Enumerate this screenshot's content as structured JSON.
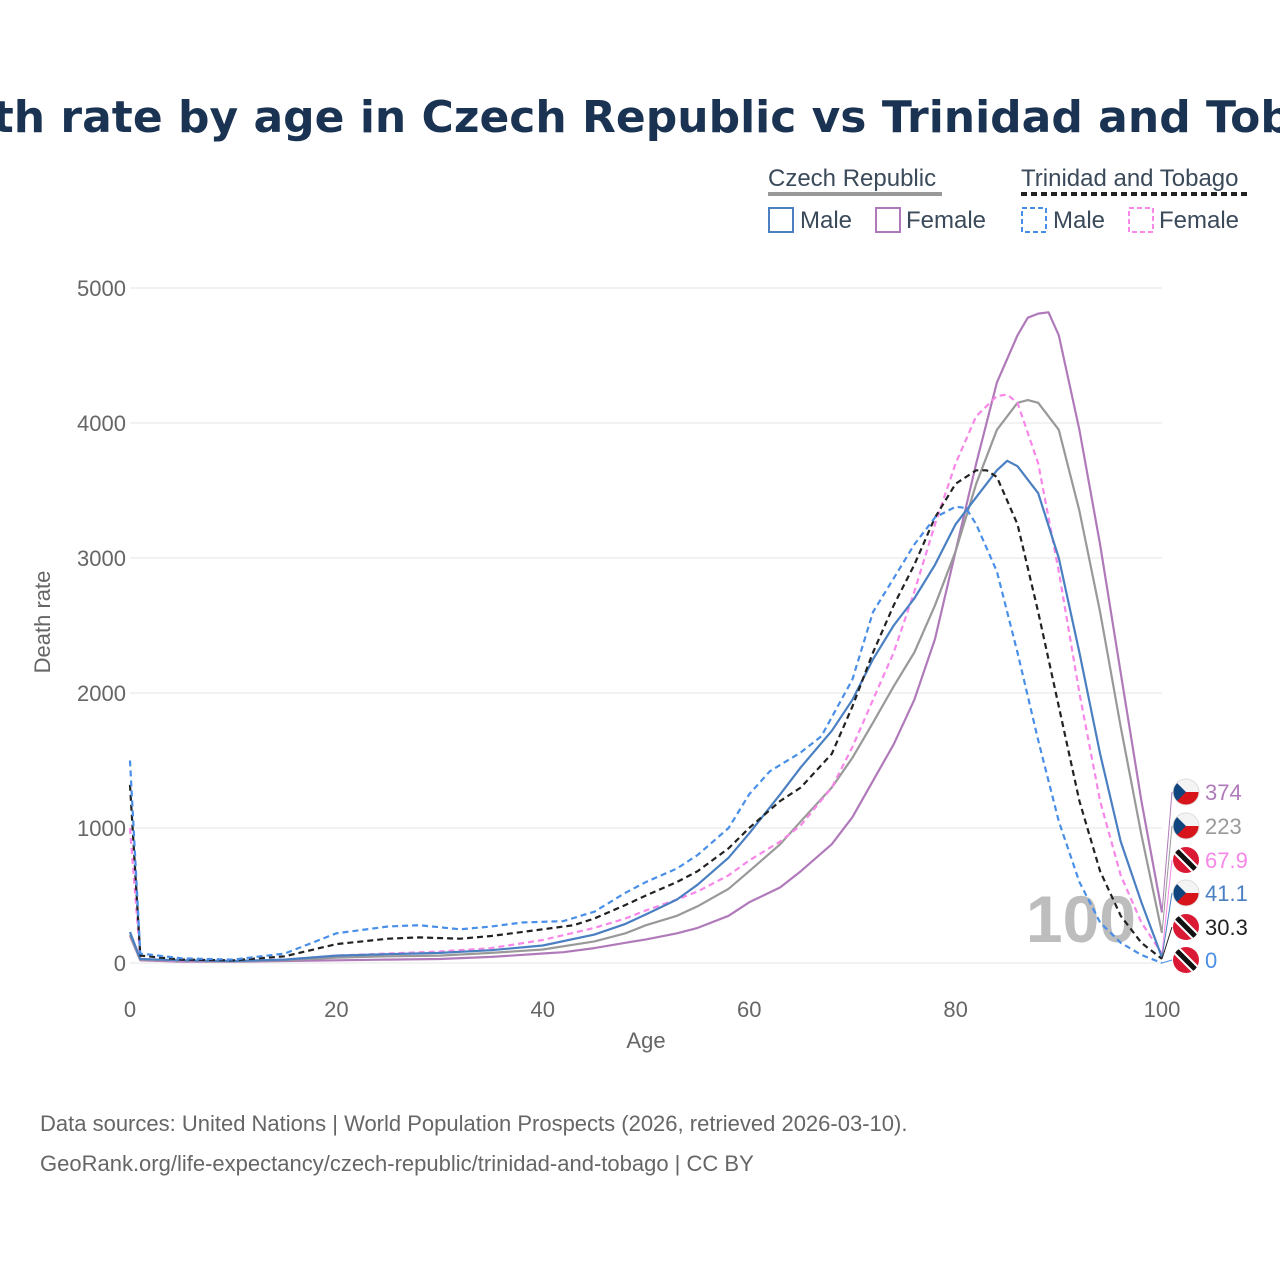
{
  "chart_data": {
    "type": "line",
    "title": "Death rate by age in Czech Republic vs Trinidad and Tobago",
    "xlabel": "Age",
    "ylabel": "Death rate",
    "xlim": [
      0,
      100
    ],
    "ylim": [
      0,
      5000
    ],
    "xticks": [
      "0",
      "20",
      "40",
      "60",
      "80",
      "100"
    ],
    "yticks": [
      "0",
      "1000",
      "2000",
      "3000",
      "4000",
      "5000"
    ],
    "grid": true,
    "legend": {
      "placement": "top-right",
      "groups": [
        {
          "name": "Czech Republic",
          "items": [
            "Male",
            "Female"
          ]
        },
        {
          "name": "Trinidad and Tobago",
          "items": [
            "Male",
            "Female"
          ]
        }
      ]
    },
    "watermark": "100",
    "series": [
      {
        "name": "Czech Republic Female",
        "color": "#b07aba",
        "dash": false,
        "end_label": "374",
        "end_value": 374,
        "flag": "czech-flag",
        "points": [
          [
            0,
            200
          ],
          [
            1,
            20
          ],
          [
            5,
            10
          ],
          [
            10,
            10
          ],
          [
            15,
            15
          ],
          [
            20,
            20
          ],
          [
            25,
            25
          ],
          [
            30,
            30
          ],
          [
            35,
            45
          ],
          [
            40,
            70
          ],
          [
            42,
            80
          ],
          [
            45,
            110
          ],
          [
            48,
            150
          ],
          [
            50,
            175
          ],
          [
            53,
            220
          ],
          [
            55,
            260
          ],
          [
            58,
            350
          ],
          [
            60,
            450
          ],
          [
            63,
            560
          ],
          [
            65,
            680
          ],
          [
            68,
            880
          ],
          [
            70,
            1080
          ],
          [
            72,
            1350
          ],
          [
            74,
            1620
          ],
          [
            76,
            1950
          ],
          [
            78,
            2400
          ],
          [
            80,
            3050
          ],
          [
            82,
            3700
          ],
          [
            84,
            4300
          ],
          [
            86,
            4650
          ],
          [
            87,
            4780
          ],
          [
            88,
            4810
          ],
          [
            89,
            4820
          ],
          [
            90,
            4650
          ],
          [
            92,
            3950
          ],
          [
            94,
            3100
          ],
          [
            96,
            2150
          ],
          [
            98,
            1200
          ],
          [
            100,
            374
          ]
        ]
      },
      {
        "name": "Czech Republic Total",
        "color": "#999999",
        "dash": false,
        "end_label": "223",
        "end_value": 223,
        "flag": "czech-flag",
        "points": [
          [
            0,
            210
          ],
          [
            1,
            25
          ],
          [
            5,
            15
          ],
          [
            10,
            12
          ],
          [
            15,
            20
          ],
          [
            20,
            40
          ],
          [
            25,
            50
          ],
          [
            30,
            55
          ],
          [
            35,
            75
          ],
          [
            40,
            100
          ],
          [
            45,
            160
          ],
          [
            48,
            220
          ],
          [
            50,
            280
          ],
          [
            53,
            350
          ],
          [
            55,
            420
          ],
          [
            58,
            550
          ],
          [
            60,
            680
          ],
          [
            63,
            880
          ],
          [
            65,
            1050
          ],
          [
            68,
            1300
          ],
          [
            70,
            1520
          ],
          [
            72,
            1780
          ],
          [
            74,
            2050
          ],
          [
            76,
            2300
          ],
          [
            78,
            2650
          ],
          [
            80,
            3050
          ],
          [
            82,
            3550
          ],
          [
            84,
            3950
          ],
          [
            86,
            4150
          ],
          [
            87,
            4170
          ],
          [
            88,
            4150
          ],
          [
            90,
            3950
          ],
          [
            92,
            3350
          ],
          [
            94,
            2600
          ],
          [
            96,
            1750
          ],
          [
            98,
            950
          ],
          [
            100,
            223
          ]
        ]
      },
      {
        "name": "Trinidad and Tobago Female",
        "color": "#f787e8",
        "dash": true,
        "end_label": "67.9",
        "end_value": 67.9,
        "flag": "tt-flag",
        "points": [
          [
            0,
            1000
          ],
          [
            1,
            30
          ],
          [
            5,
            15
          ],
          [
            10,
            15
          ],
          [
            15,
            25
          ],
          [
            20,
            55
          ],
          [
            25,
            70
          ],
          [
            30,
            85
          ],
          [
            35,
            110
          ],
          [
            40,
            170
          ],
          [
            45,
            260
          ],
          [
            48,
            330
          ],
          [
            50,
            390
          ],
          [
            53,
            470
          ],
          [
            55,
            530
          ],
          [
            58,
            650
          ],
          [
            60,
            760
          ],
          [
            63,
            900
          ],
          [
            65,
            1020
          ],
          [
            68,
            1300
          ],
          [
            70,
            1600
          ],
          [
            72,
            1950
          ],
          [
            74,
            2300
          ],
          [
            76,
            2750
          ],
          [
            78,
            3250
          ],
          [
            80,
            3700
          ],
          [
            82,
            4050
          ],
          [
            84,
            4200
          ],
          [
            85,
            4210
          ],
          [
            86,
            4150
          ],
          [
            88,
            3700
          ],
          [
            90,
            2900
          ],
          [
            92,
            2000
          ],
          [
            94,
            1200
          ],
          [
            96,
            650
          ],
          [
            98,
            300
          ],
          [
            100,
            67.9
          ]
        ]
      },
      {
        "name": "Czech Republic Male",
        "color": "#4a7fc1",
        "dash": false,
        "end_label": "41.1",
        "end_value": 41.1,
        "flag": "czech-flag",
        "points": [
          [
            0,
            230
          ],
          [
            1,
            30
          ],
          [
            5,
            20
          ],
          [
            10,
            15
          ],
          [
            15,
            25
          ],
          [
            20,
            55
          ],
          [
            25,
            65
          ],
          [
            30,
            75
          ],
          [
            35,
            95
          ],
          [
            40,
            130
          ],
          [
            45,
            210
          ],
          [
            48,
            290
          ],
          [
            50,
            360
          ],
          [
            53,
            470
          ],
          [
            55,
            580
          ],
          [
            58,
            780
          ],
          [
            60,
            960
          ],
          [
            63,
            1250
          ],
          [
            65,
            1450
          ],
          [
            68,
            1720
          ],
          [
            70,
            1950
          ],
          [
            72,
            2250
          ],
          [
            74,
            2500
          ],
          [
            76,
            2700
          ],
          [
            78,
            2950
          ],
          [
            80,
            3250
          ],
          [
            82,
            3450
          ],
          [
            84,
            3650
          ],
          [
            85,
            3720
          ],
          [
            86,
            3680
          ],
          [
            88,
            3480
          ],
          [
            90,
            3000
          ],
          [
            92,
            2300
          ],
          [
            94,
            1550
          ],
          [
            96,
            900
          ],
          [
            98,
            450
          ],
          [
            100,
            41.1
          ]
        ]
      },
      {
        "name": "Trinidad and Tobago Total",
        "color": "#222222",
        "dash": true,
        "end_label": "30.3",
        "end_value": 30.3,
        "flag": "tt-flag",
        "points": [
          [
            0,
            1320
          ],
          [
            1,
            55
          ],
          [
            5,
            25
          ],
          [
            10,
            20
          ],
          [
            15,
            50
          ],
          [
            20,
            140
          ],
          [
            25,
            180
          ],
          [
            28,
            190
          ],
          [
            32,
            180
          ],
          [
            35,
            200
          ],
          [
            40,
            250
          ],
          [
            43,
            280
          ],
          [
            45,
            330
          ],
          [
            48,
            430
          ],
          [
            50,
            500
          ],
          [
            53,
            600
          ],
          [
            55,
            680
          ],
          [
            58,
            850
          ],
          [
            60,
            1000
          ],
          [
            63,
            1200
          ],
          [
            65,
            1300
          ],
          [
            68,
            1550
          ],
          [
            70,
            1900
          ],
          [
            72,
            2300
          ],
          [
            74,
            2650
          ],
          [
            76,
            2950
          ],
          [
            78,
            3300
          ],
          [
            80,
            3550
          ],
          [
            82,
            3650
          ],
          [
            83,
            3650
          ],
          [
            84,
            3600
          ],
          [
            86,
            3250
          ],
          [
            88,
            2600
          ],
          [
            90,
            1900
          ],
          [
            92,
            1200
          ],
          [
            94,
            680
          ],
          [
            96,
            350
          ],
          [
            98,
            150
          ],
          [
            100,
            30.3
          ]
        ]
      },
      {
        "name": "Trinidad and Tobago Male",
        "color": "#4a8fe7",
        "dash": true,
        "end_label": "0",
        "end_value": 0,
        "flag": "tt-flag",
        "points": [
          [
            0,
            1500
          ],
          [
            1,
            70
          ],
          [
            5,
            35
          ],
          [
            10,
            25
          ],
          [
            15,
            70
          ],
          [
            20,
            220
          ],
          [
            25,
            270
          ],
          [
            28,
            280
          ],
          [
            32,
            250
          ],
          [
            35,
            270
          ],
          [
            38,
            300
          ],
          [
            42,
            310
          ],
          [
            45,
            380
          ],
          [
            48,
            520
          ],
          [
            50,
            600
          ],
          [
            53,
            700
          ],
          [
            55,
            800
          ],
          [
            58,
            1000
          ],
          [
            60,
            1250
          ],
          [
            62,
            1420
          ],
          [
            65,
            1560
          ],
          [
            67,
            1680
          ],
          [
            70,
            2100
          ],
          [
            72,
            2600
          ],
          [
            74,
            2850
          ],
          [
            76,
            3100
          ],
          [
            78,
            3300
          ],
          [
            80,
            3380
          ],
          [
            81,
            3370
          ],
          [
            82,
            3250
          ],
          [
            84,
            2900
          ],
          [
            86,
            2300
          ],
          [
            88,
            1650
          ],
          [
            90,
            1050
          ],
          [
            92,
            600
          ],
          [
            94,
            300
          ],
          [
            96,
            150
          ],
          [
            98,
            60
          ],
          [
            100,
            0
          ]
        ]
      }
    ]
  },
  "footer": {
    "source_line1": "Data sources: United Nations | World Population Prospects (2026, retrieved 2026-03-10).",
    "source_line2": "GeoRank.org/life-expectancy/czech-republic/trinidad-and-tobago | CC BY"
  }
}
